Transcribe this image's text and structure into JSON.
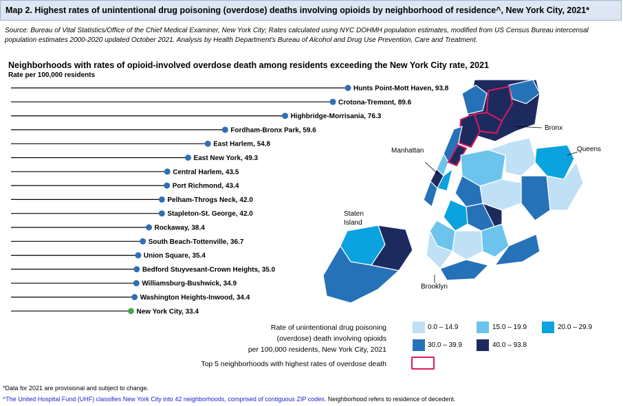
{
  "header": {
    "title": "Map 2. Highest rates of unintentional drug poisoning (overdose) deaths involving opioids by neighborhood of residence^, New York City, 2021*",
    "source": "Source: Bureau of Vital Statistics/Office of the Chief Medical Examiner, New York City; Rates calculated using NYC DOHMH population estimates, modified from US Census Bureau intercensal population estimates 2000-2020 updated October 2021. Analysis by Health Department's Bureau of Alcohol and Drug Use Prevention, Care and Treatment."
  },
  "chart_data": {
    "type": "lollipop",
    "title": "Neighborhoods with rates of opioid-involved overdose death among residents exceeding the New York City rate, 2021",
    "subtitle": "Rate per 100,000 residents",
    "categories": [
      "Hunts Point-Mott Haven",
      "Crotona-Tremont",
      "Highbridge-Morrisania",
      "Fordham-Bronx Park",
      "East Harlem",
      "East New York",
      "Central Harlem",
      "Port Richmond",
      "Pelham-Throgs Neck",
      "Stapleton-St. George",
      "Rockaway",
      "South Beach-Tottenville",
      "Union Square",
      "Bedford Stuyvesant-Crown Heights",
      "Williamsburg-Bushwick",
      "Washington Heights-Inwood",
      "New York City"
    ],
    "values": [
      93.8,
      89.6,
      76.3,
      59.6,
      54.8,
      49.3,
      43.5,
      43.4,
      42.0,
      42.0,
      38.4,
      36.7,
      35.4,
      35.0,
      34.9,
      34.4,
      33.4
    ],
    "labels": [
      "Hunts Point-Mott Haven, 93.8",
      "Crotona-Tremont, 89.6",
      "Highbridge-Morrisania, 76.3",
      "Fordham-Bronx Park, 59.6",
      "East Harlem, 54.8",
      "East New York, 49.3",
      "Central Harlem, 43.5",
      "Port Richmond, 43.4",
      "Pelham-Throgs Neck, 42.0",
      "Stapleton-St. George, 42.0",
      "Rockaway, 38.4",
      "South Beach-Tottenville, 36.7",
      "Union Square, 35.4",
      "Bedford Stuyvesant-Crown Heights, 35.0",
      "Williamsburg-Bushwick, 34.9",
      "Washington Heights-Inwood, 34.4",
      "New York City, 33.4"
    ],
    "point_color": "#2e6fb7",
    "reference_color": "#4ea24a",
    "line_color": "#000000"
  },
  "map": {
    "boroughs": [
      "Bronx",
      "Manhattan",
      "Queens",
      "Staten Island",
      "Brooklyn"
    ],
    "classes": [
      {
        "label": "0.0 – 14.9",
        "color": "#bfe0f5"
      },
      {
        "label": "15.0 – 19.9",
        "color": "#6cc4ec"
      },
      {
        "label": "20.0 – 29.9",
        "color": "#0aa2df"
      },
      {
        "label": "30.0 – 39.9",
        "color": "#2672b9"
      },
      {
        "label": "40.0 – 93.8",
        "color": "#1d2a5e"
      }
    ],
    "highlight_color": "#d81b60"
  },
  "legend": {
    "caption_line1": "Rate of unintentional drug poisoning",
    "caption_line2": "(overdose) death involving opioids",
    "caption_line3": "per 100,000 residents, New York City, 2021",
    "top5_caption": "Top 5 neighborhoods with highest rates of overdose death"
  },
  "footnotes": {
    "note1": "*Data for 2021 are provisional and subject to change.",
    "note2_link": "^The United Hospital Fund (UHF) classifies New York City into 42 neighborhoods, comprised of contiguous ZIP codes.",
    "note2_rest": " Neighborhood refers to residence of decedent."
  }
}
